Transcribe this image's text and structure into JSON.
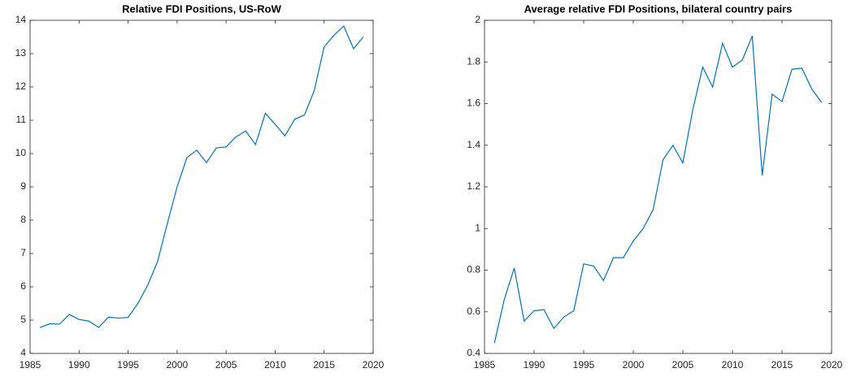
{
  "chart_data": [
    {
      "type": "line",
      "title": "Relative FDI Positions, US-RoW",
      "x": [
        1986,
        1987,
        1988,
        1989,
        1990,
        1991,
        1992,
        1993,
        1994,
        1995,
        1996,
        1997,
        1998,
        1999,
        2000,
        2001,
        2002,
        2003,
        2004,
        2005,
        2006,
        2007,
        2008,
        2009,
        2010,
        2011,
        2012,
        2013,
        2014,
        2015,
        2016,
        2017,
        2018,
        2019
      ],
      "values": [
        4.78,
        4.89,
        4.88,
        5.17,
        5.02,
        4.97,
        4.78,
        5.09,
        5.06,
        5.08,
        5.5,
        6.05,
        6.75,
        7.9,
        9.0,
        9.88,
        10.1,
        9.73,
        10.17,
        10.2,
        10.5,
        10.68,
        10.27,
        11.21,
        10.88,
        10.53,
        11.03,
        11.16,
        11.9,
        13.2,
        13.55,
        13.83,
        13.15,
        13.5
      ],
      "color": "#0072bd",
      "xlim": [
        1985,
        2020
      ],
      "xticks": [
        1985,
        1990,
        1995,
        2000,
        2005,
        2010,
        2015,
        2020
      ],
      "ylim": [
        4,
        14
      ],
      "yticks": [
        4,
        5,
        6,
        7,
        8,
        9,
        10,
        11,
        12,
        13,
        14
      ],
      "grid": false
    },
    {
      "type": "line",
      "title": "Average relative FDI Positions, bilateral country pairs",
      "x": [
        1986,
        1987,
        1988,
        1989,
        1990,
        1991,
        1992,
        1993,
        1994,
        1995,
        1996,
        1997,
        1998,
        1999,
        2000,
        2001,
        2002,
        2003,
        2004,
        2005,
        2006,
        2007,
        2008,
        2009,
        2010,
        2011,
        2012,
        2013,
        2014,
        2015,
        2016,
        2017,
        2018,
        2019
      ],
      "values": [
        0.45,
        0.66,
        0.81,
        0.555,
        0.605,
        0.61,
        0.52,
        0.575,
        0.605,
        0.83,
        0.82,
        0.75,
        0.86,
        0.86,
        0.94,
        1.0,
        1.09,
        1.33,
        1.4,
        1.315,
        1.57,
        1.775,
        1.68,
        1.89,
        1.775,
        1.81,
        1.925,
        1.255,
        1.645,
        1.61,
        1.765,
        1.77,
        1.67,
        1.605
      ],
      "color": "#0072bd",
      "xlim": [
        1985,
        2020
      ],
      "xticks": [
        1985,
        1990,
        1995,
        2000,
        2005,
        2010,
        2015,
        2020
      ],
      "ylim": [
        0.4,
        2
      ],
      "yticks": [
        0.4,
        0.6,
        0.8,
        1,
        1.2,
        1.4,
        1.6,
        1.8,
        2
      ],
      "grid": false
    }
  ]
}
